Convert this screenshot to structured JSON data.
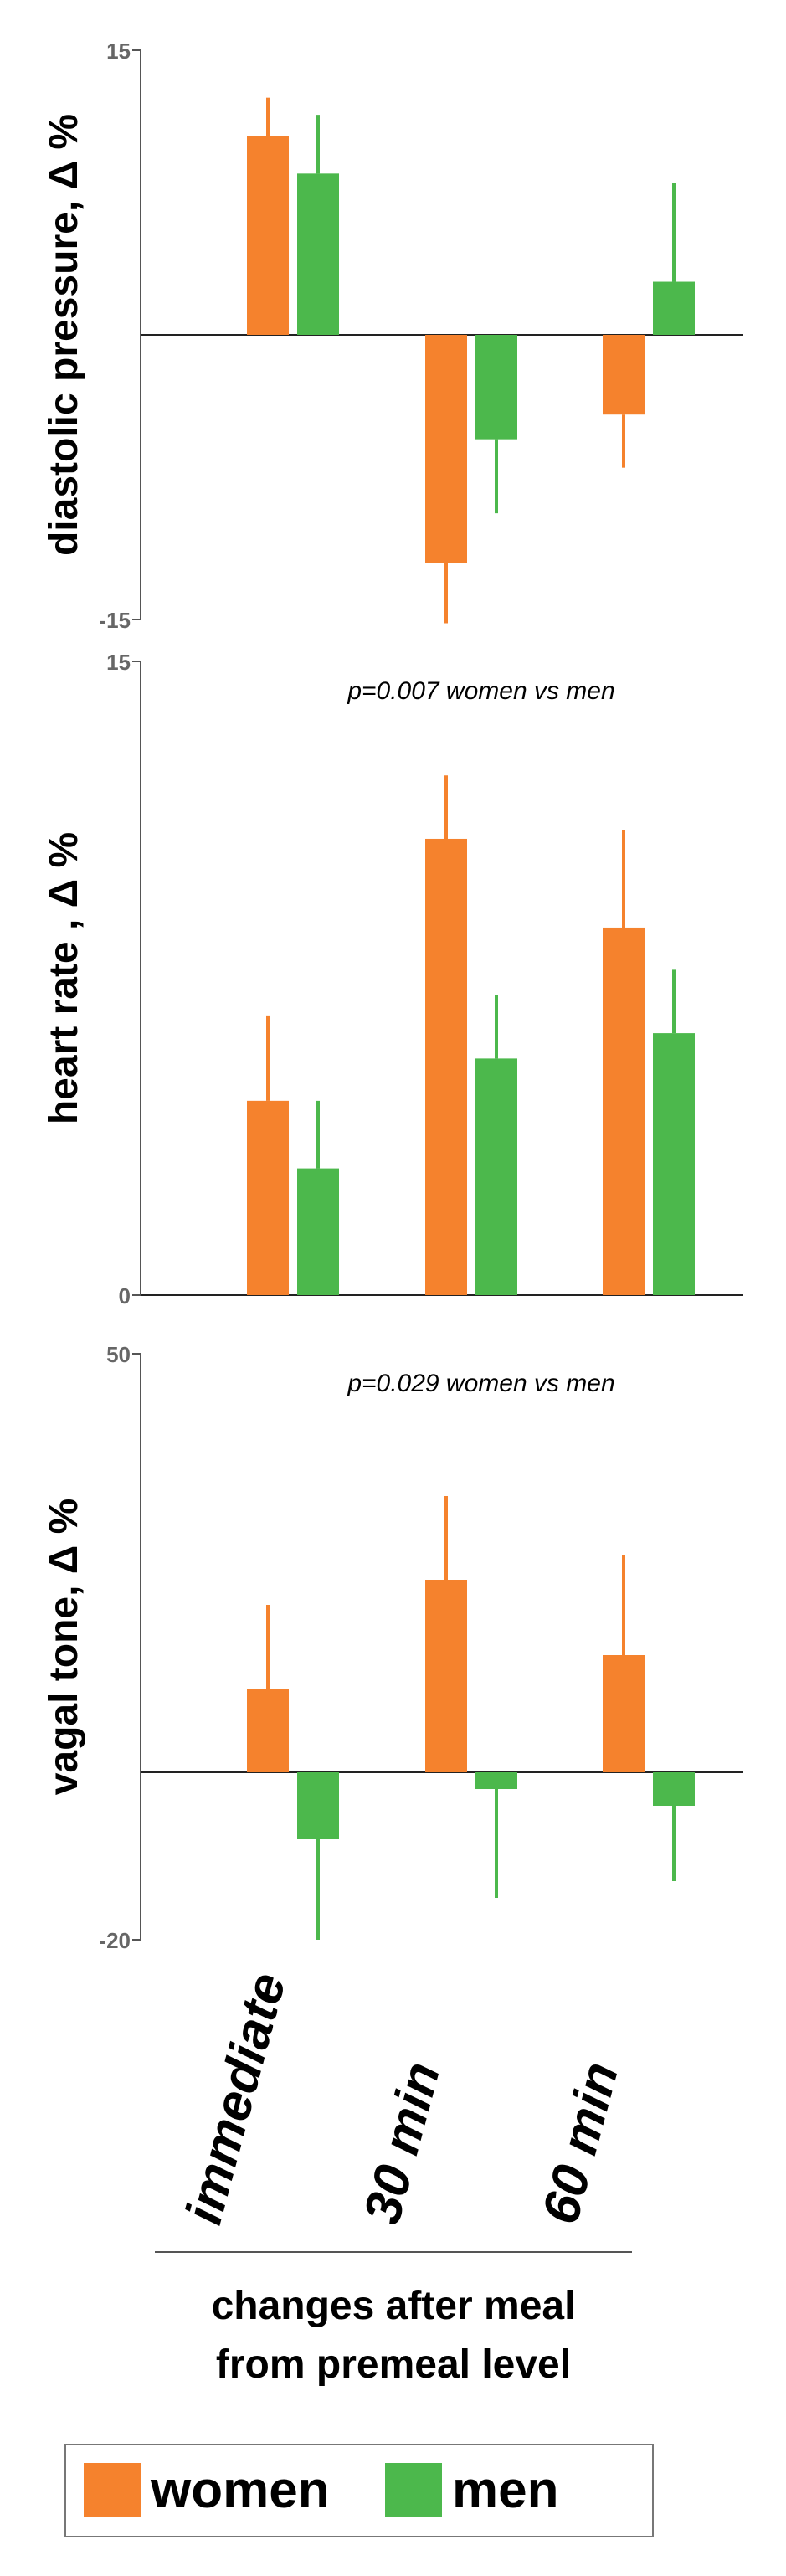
{
  "chart_data": [
    {
      "type": "bar",
      "ylabel": "diastolic pressure, Δ %",
      "ylim": [
        -15,
        15
      ],
      "tick_labels": [
        "15",
        "-15"
      ],
      "annotation": "",
      "categories": [
        "immediate",
        "30 min",
        "60 min"
      ],
      "series": [
        {
          "name": "women",
          "values": [
            10.5,
            -12.0,
            -4.2
          ],
          "errors": [
            2.0,
            3.2,
            2.8
          ]
        },
        {
          "name": "men",
          "values": [
            8.5,
            -5.5,
            2.8
          ],
          "errors": [
            3.1,
            3.9,
            5.2
          ]
        }
      ]
    },
    {
      "type": "bar",
      "ylabel": "heart rate , Δ %",
      "ylim": [
        0,
        15
      ],
      "tick_labels": [
        "15",
        "0"
      ],
      "annotation": "p=0.007 women vs men",
      "categories": [
        "immediate",
        "30 min",
        "60 min"
      ],
      "series": [
        {
          "name": "women",
          "values": [
            4.6,
            10.8,
            8.7
          ],
          "errors": [
            2.0,
            1.5,
            2.3
          ]
        },
        {
          "name": "men",
          "values": [
            3.0,
            5.6,
            6.2
          ],
          "errors": [
            1.6,
            1.5,
            1.5
          ]
        }
      ]
    },
    {
      "type": "bar",
      "ylabel": "vagal tone, Δ %",
      "ylim": [
        -20,
        50
      ],
      "tick_labels": [
        "50",
        "-20"
      ],
      "annotation": "p=0.029 women vs men",
      "categories": [
        "immediate",
        "30 min",
        "60 min"
      ],
      "series": [
        {
          "name": "women",
          "values": [
            10.0,
            23.0,
            14.0
          ],
          "errors": [
            10.0,
            10.0,
            12.0
          ]
        },
        {
          "name": "men",
          "values": [
            -8.0,
            -2.0,
            -4.0
          ],
          "errors": [
            12.0,
            13.0,
            9.0
          ]
        }
      ]
    }
  ],
  "xlabel_lines": [
    "changes after meal",
    "from premeal level"
  ],
  "legend": [
    {
      "name": "women",
      "color": "#f5822d"
    },
    {
      "name": "men",
      "color": "#4cb84c"
    }
  ],
  "colors": {
    "women": "#f5822d",
    "men": "#4cb84c",
    "axis": "#555555",
    "text": "#000000"
  }
}
